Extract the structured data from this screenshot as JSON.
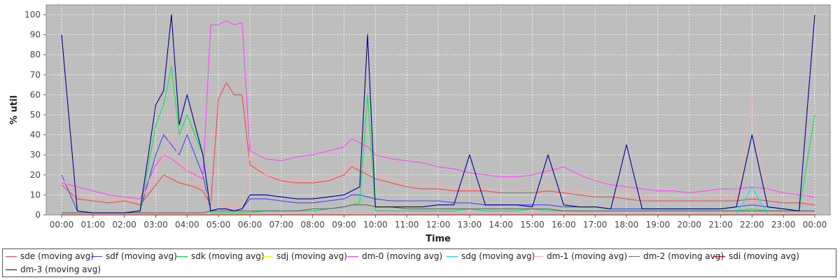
{
  "chart_data": {
    "type": "line",
    "title": "",
    "xlabel": "Time",
    "ylabel": "% util",
    "ylim": [
      0,
      100
    ],
    "yticks": [
      0,
      10,
      20,
      30,
      40,
      50,
      60,
      70,
      80,
      90,
      100
    ],
    "xticks": [
      "00:00",
      "01:00",
      "02:00",
      "03:00",
      "04:00",
      "05:00",
      "06:00",
      "07:00",
      "08:00",
      "09:00",
      "10:00",
      "11:00",
      "12:00",
      "13:00",
      "14:00",
      "15:00",
      "16:00",
      "17:00",
      "18:00",
      "19:00",
      "20:00",
      "21:00",
      "22:00",
      "23:00",
      "00:00"
    ],
    "grid": true,
    "legend_position": "bottom",
    "background": "#bebebe",
    "x_hours": [
      0,
      0.5,
      1,
      1.5,
      2,
      2.5,
      3,
      3.25,
      3.5,
      3.75,
      4,
      4.25,
      4.5,
      4.75,
      5,
      5.25,
      5.5,
      5.75,
      6,
      6.5,
      7,
      7.5,
      8,
      8.5,
      9,
      9.25,
      9.5,
      9.75,
      10,
      10.5,
      11,
      11.5,
      12,
      12.5,
      13,
      13.5,
      14,
      14.5,
      15,
      15.5,
      16,
      16.5,
      17,
      17.5,
      18,
      18.5,
      19,
      19.5,
      20,
      20.5,
      21,
      21.5,
      22,
      22.5,
      23,
      23.5,
      24
    ],
    "series": [
      {
        "name": "sde (moving avg)",
        "color": "#ff4444",
        "values": [
          15,
          8,
          7,
          6,
          7,
          5,
          15,
          20,
          18,
          16,
          15,
          14,
          12,
          5,
          58,
          66,
          60,
          60,
          25,
          20,
          17,
          16,
          16,
          17,
          20,
          24,
          22,
          20,
          18,
          16,
          14,
          13,
          13,
          12,
          12,
          12,
          11,
          11,
          11,
          12,
          11,
          10,
          9,
          9,
          8,
          7,
          7,
          7,
          7,
          7,
          7,
          7,
          8,
          7,
          6,
          6,
          5
        ]
      },
      {
        "name": "sdf (moving avg)",
        "color": "#4444ff",
        "values": [
          20,
          2,
          1,
          1,
          1,
          2,
          30,
          40,
          35,
          30,
          40,
          30,
          20,
          2,
          3,
          3,
          2,
          3,
          8,
          8,
          7,
          6,
          6,
          7,
          8,
          10,
          10,
          9,
          8,
          7,
          7,
          7,
          7,
          6,
          6,
          5,
          5,
          5,
          5,
          5,
          4,
          4,
          4,
          3,
          3,
          3,
          3,
          3,
          3,
          3,
          3,
          4,
          5,
          4,
          3,
          2,
          2
        ]
      },
      {
        "name": "sdk (moving avg)",
        "color": "#00ee44",
        "values": [
          1,
          1,
          1,
          1,
          1,
          1,
          45,
          55,
          74,
          40,
          50,
          40,
          30,
          1,
          1,
          1,
          1,
          1,
          1,
          2,
          2,
          2,
          2,
          3,
          4,
          5,
          6,
          60,
          2,
          2,
          2,
          2,
          2,
          2,
          3,
          2,
          2,
          2,
          3,
          2,
          2,
          2,
          2,
          2,
          2,
          2,
          2,
          2,
          2,
          2,
          2,
          2,
          3,
          2,
          2,
          2,
          50
        ]
      },
      {
        "name": "sdj (moving avg)",
        "color": "#ffff00",
        "values": [
          0,
          0,
          0,
          0,
          0,
          0,
          0,
          0,
          0,
          0,
          0,
          0,
          0,
          0,
          0,
          0,
          0,
          0,
          0,
          0,
          0,
          0,
          0,
          0,
          0,
          0,
          0,
          0,
          0,
          0,
          0,
          0,
          0,
          0,
          0,
          0,
          0,
          0,
          0,
          0,
          0,
          0,
          0,
          0,
          0,
          0,
          0,
          0,
          0,
          0,
          0,
          0,
          0,
          0,
          0,
          0,
          0
        ]
      },
      {
        "name": "dm-0 (moving avg)",
        "color": "#ff44ff",
        "values": [
          16,
          14,
          12,
          10,
          9,
          8,
          25,
          30,
          28,
          25,
          22,
          20,
          18,
          95,
          95,
          97,
          95,
          96,
          32,
          28,
          27,
          29,
          30,
          32,
          34,
          38,
          36,
          34,
          30,
          28,
          27,
          26,
          24,
          23,
          21,
          20,
          19,
          19,
          20,
          22,
          24,
          20,
          17,
          15,
          14,
          13,
          12,
          12,
          11,
          12,
          13,
          13,
          14,
          13,
          11,
          10,
          9
        ]
      },
      {
        "name": "sdg (moving avg)",
        "color": "#00e5e5",
        "values": [
          0,
          0,
          0,
          0,
          0,
          0,
          0,
          0,
          0,
          0,
          0,
          0,
          0,
          0,
          0,
          0,
          0,
          0,
          0,
          0,
          0,
          0,
          0,
          0,
          0,
          0,
          0,
          0,
          0,
          0,
          0,
          0,
          0,
          0,
          0,
          0,
          0,
          0,
          0,
          0,
          0,
          0,
          0,
          0,
          0,
          0,
          0,
          0,
          0,
          0,
          0,
          0,
          14,
          0,
          0,
          0,
          0
        ]
      },
      {
        "name": "dm-1 (moving avg)",
        "color": "#ffaaaa",
        "values": [
          18,
          10,
          9,
          8,
          8,
          7,
          20,
          30,
          40,
          28,
          22,
          18,
          15,
          6,
          5,
          5,
          5,
          5,
          30,
          20,
          18,
          17,
          17,
          18,
          22,
          26,
          24,
          22,
          20,
          18,
          16,
          15,
          15,
          14,
          14,
          13,
          13,
          13,
          14,
          14,
          13,
          12,
          11,
          11,
          12,
          10,
          9,
          9,
          9,
          9,
          9,
          10,
          57,
          9,
          8,
          7,
          6
        ]
      },
      {
        "name": "dm-2 (moving avg)",
        "color": "#666666",
        "values": [
          1,
          1,
          1,
          1,
          1,
          1,
          1,
          1,
          1,
          1,
          1,
          1,
          1,
          2,
          2,
          2,
          2,
          2,
          2,
          2,
          2,
          2,
          3,
          3,
          4,
          5,
          5,
          5,
          4,
          4,
          3,
          3,
          3,
          3,
          3,
          3,
          3,
          3,
          3,
          3,
          2,
          2,
          2,
          2,
          2,
          2,
          2,
          2,
          2,
          2,
          2,
          2,
          2,
          2,
          2,
          2,
          2
        ]
      },
      {
        "name": "sdi (moving avg)",
        "color": "#cc0000",
        "values": [
          0,
          0,
          0,
          0,
          0,
          0,
          0,
          0,
          0,
          0,
          0,
          0,
          0,
          0,
          0,
          0,
          0,
          0,
          0,
          0,
          0,
          0,
          0,
          0,
          0,
          0,
          0,
          0,
          0,
          0,
          0,
          0,
          0,
          0,
          0,
          0,
          0,
          0,
          0,
          0,
          0,
          0,
          0,
          0,
          0,
          0,
          0,
          0,
          0,
          0,
          0,
          0,
          0,
          0,
          0,
          0,
          0
        ]
      },
      {
        "name": "dm-3 (moving avg)",
        "color": "#00008b",
        "values": [
          90,
          2,
          1,
          1,
          1,
          2,
          55,
          62,
          100,
          45,
          60,
          45,
          30,
          2,
          3,
          3,
          2,
          3,
          10,
          10,
          9,
          8,
          8,
          9,
          10,
          12,
          14,
          90,
          4,
          4,
          4,
          4,
          5,
          5,
          30,
          5,
          5,
          5,
          4,
          30,
          5,
          4,
          4,
          3,
          35,
          3,
          3,
          3,
          3,
          3,
          3,
          4,
          40,
          4,
          3,
          2,
          100
        ]
      }
    ]
  }
}
